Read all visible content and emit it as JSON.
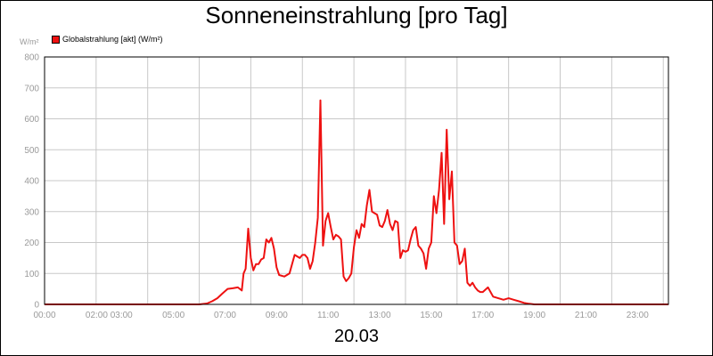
{
  "chart_data": {
    "type": "line",
    "title": "Sonneneinstrahlung [pro Tag]",
    "ylabel": "W/m²",
    "xlabel": "20.03",
    "ylim": [
      0,
      800
    ],
    "xlim": [
      0,
      24.2
    ],
    "grid": true,
    "legend_placement": "top-left",
    "yticks": [
      0,
      100,
      200,
      300,
      400,
      500,
      600,
      700,
      800
    ],
    "xtick_labels": [
      "00:00",
      "02:00 03:00",
      "05:00",
      "07:00",
      "09:00",
      "11:00",
      "13:00",
      "15:00",
      "17:00",
      "19:00",
      "21:00",
      "23:00"
    ],
    "series": [
      {
        "name": "Globalstrahlung [akt] (W/m²)",
        "color": "#ee1111",
        "x": [
          0,
          6.0,
          6.3,
          6.5,
          6.7,
          6.9,
          7.1,
          7.3,
          7.5,
          7.65,
          7.72,
          7.8,
          7.9,
          8.0,
          8.1,
          8.2,
          8.3,
          8.4,
          8.5,
          8.6,
          8.7,
          8.8,
          8.9,
          9.0,
          9.1,
          9.3,
          9.5,
          9.7,
          9.9,
          10.0,
          10.1,
          10.2,
          10.3,
          10.4,
          10.5,
          10.6,
          10.7,
          10.8,
          10.9,
          11.0,
          11.1,
          11.2,
          11.3,
          11.4,
          11.5,
          11.6,
          11.7,
          11.8,
          11.9,
          12.0,
          12.1,
          12.2,
          12.3,
          12.4,
          12.5,
          12.6,
          12.7,
          12.8,
          12.9,
          13.0,
          13.1,
          13.2,
          13.3,
          13.4,
          13.5,
          13.6,
          13.7,
          13.8,
          13.9,
          14.0,
          14.1,
          14.2,
          14.3,
          14.4,
          14.5,
          14.6,
          14.7,
          14.8,
          14.9,
          15.0,
          15.1,
          15.2,
          15.3,
          15.4,
          15.5,
          15.6,
          15.7,
          15.8,
          15.9,
          16.0,
          16.1,
          16.2,
          16.3,
          16.4,
          16.5,
          16.6,
          16.7,
          16.8,
          16.9,
          17.0,
          17.2,
          17.4,
          17.6,
          17.8,
          18.0,
          18.2,
          18.4,
          18.6,
          18.8,
          19.0,
          19.2,
          24.2
        ],
        "y": [
          0,
          0,
          3,
          10,
          20,
          35,
          50,
          52,
          55,
          45,
          100,
          115,
          245,
          150,
          110,
          130,
          130,
          145,
          150,
          210,
          200,
          215,
          180,
          120,
          95,
          90,
          100,
          160,
          150,
          160,
          160,
          150,
          115,
          140,
          200,
          280,
          660,
          190,
          270,
          295,
          250,
          210,
          225,
          220,
          210,
          90,
          75,
          85,
          100,
          185,
          240,
          215,
          260,
          250,
          320,
          370,
          300,
          295,
          290,
          255,
          250,
          270,
          305,
          260,
          240,
          270,
          265,
          150,
          175,
          170,
          175,
          210,
          240,
          250,
          190,
          180,
          165,
          115,
          180,
          200,
          350,
          295,
          370,
          490,
          260,
          565,
          340,
          430,
          200,
          190,
          130,
          140,
          180,
          70,
          60,
          70,
          55,
          45,
          40,
          40,
          55,
          25,
          20,
          15,
          20,
          15,
          10,
          5,
          2,
          0,
          0,
          0
        ]
      }
    ]
  }
}
